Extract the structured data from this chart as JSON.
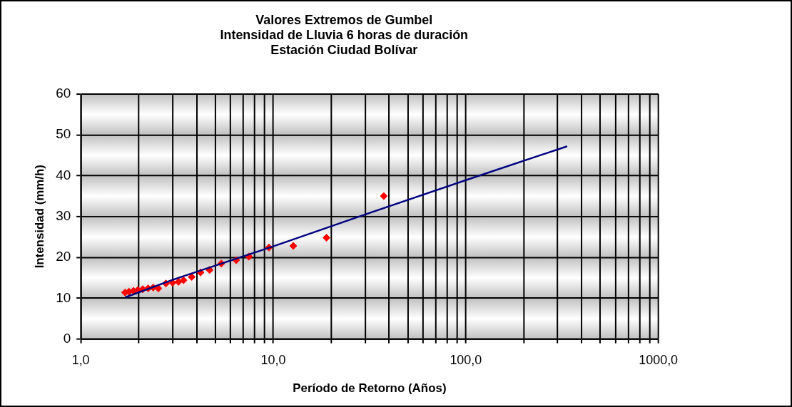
{
  "chart_data": {
    "type": "scatter",
    "title": "Valores Extremos de Gumbel\nIntensidad de Lluvia 6 horas de duración\nEstación Ciudad Bolívar",
    "xlabel": "Período de Retorno (Años)",
    "ylabel": "Intensidad (mm/h)",
    "log": "x",
    "grid": true,
    "legend": false,
    "xlim": [
      1,
      1000
    ],
    "ylim": [
      0,
      60
    ],
    "xticks": [
      {
        "value": 1,
        "label": "1,0"
      },
      {
        "value": 2,
        "label": null
      },
      {
        "value": 3,
        "label": null
      },
      {
        "value": 4,
        "label": null
      },
      {
        "value": 5,
        "label": null
      },
      {
        "value": 6,
        "label": null
      },
      {
        "value": 7,
        "label": null
      },
      {
        "value": 8,
        "label": null
      },
      {
        "value": 9,
        "label": null
      },
      {
        "value": 10,
        "label": "10,0"
      },
      {
        "value": 20,
        "label": null
      },
      {
        "value": 30,
        "label": null
      },
      {
        "value": 40,
        "label": null
      },
      {
        "value": 50,
        "label": null
      },
      {
        "value": 60,
        "label": null
      },
      {
        "value": 70,
        "label": null
      },
      {
        "value": 80,
        "label": null
      },
      {
        "value": 90,
        "label": null
      },
      {
        "value": 100,
        "label": "100,0"
      },
      {
        "value": 200,
        "label": null
      },
      {
        "value": 300,
        "label": null
      },
      {
        "value": 400,
        "label": null
      },
      {
        "value": 500,
        "label": null
      },
      {
        "value": 600,
        "label": null
      },
      {
        "value": 700,
        "label": null
      },
      {
        "value": 800,
        "label": null
      },
      {
        "value": 900,
        "label": null
      },
      {
        "value": 1000,
        "label": "1000,0"
      }
    ],
    "yticks": [
      0,
      10,
      20,
      30,
      40,
      50,
      60
    ],
    "series": [
      {
        "color": "#ff0000",
        "marker": "diamond",
        "x": [
          1.7,
          1.78,
          1.88,
          1.98,
          2.1,
          2.24,
          2.38,
          2.53,
          2.77,
          3.0,
          3.22,
          3.42,
          3.77,
          4.19,
          4.67,
          5.37,
          6.42,
          7.47,
          9.5,
          12.7,
          18.9,
          37.5
        ],
        "values": [
          11.4,
          11.6,
          11.8,
          12.0,
          12.2,
          12.4,
          12.6,
          12.4,
          13.6,
          13.8,
          14.0,
          14.4,
          15.2,
          16.3,
          16.9,
          18.5,
          19.3,
          20.2,
          22.4,
          22.8,
          24.8,
          35.0
        ]
      },
      {
        "type": "line",
        "color": "#000080",
        "marker": "none",
        "x": [
          1.7,
          3,
          10,
          30,
          100,
          336
        ],
        "values": [
          10.2,
          14.5,
          22.7,
          30.5,
          38.9,
          47.2
        ]
      }
    ]
  }
}
